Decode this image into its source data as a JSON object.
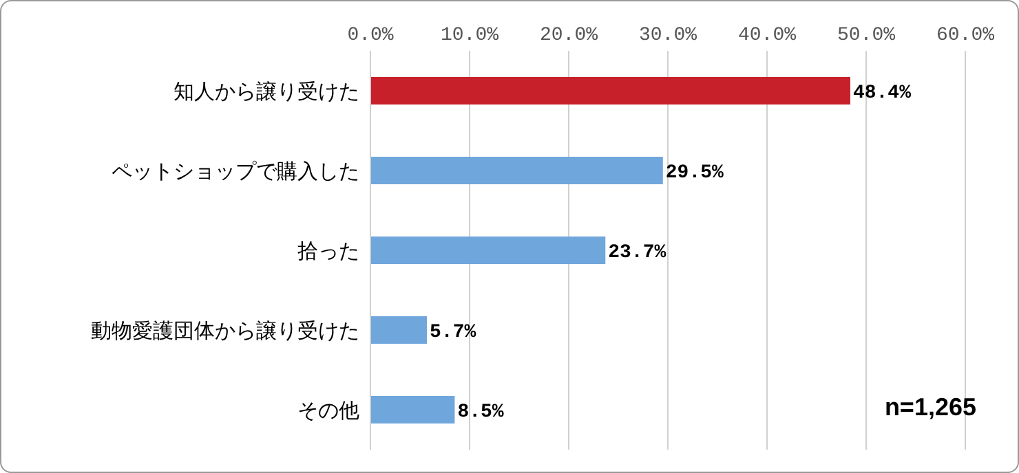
{
  "chart_data": {
    "type": "bar",
    "orientation": "horizontal",
    "categories": [
      "知人から譲り受けた",
      "ペットショップで購入した",
      "拾った",
      "動物愛護団体から譲り受けた",
      "その他"
    ],
    "values": [
      48.4,
      29.5,
      23.7,
      5.7,
      8.5
    ],
    "colors": [
      "#c8202a",
      "#6fa6dc",
      "#6fa6dc",
      "#6fa6dc",
      "#6fa6dc"
    ],
    "value_labels": [
      "48.4%",
      "29.5%",
      "23.7%",
      "5.7%",
      "8.5%"
    ],
    "xlim": [
      0,
      60
    ],
    "xticks": [
      {
        "value": 0,
        "label": "0.0%"
      },
      {
        "value": 10,
        "label": "10.0%"
      },
      {
        "value": 20,
        "label": "20.0%"
      },
      {
        "value": 30,
        "label": "30.0%"
      },
      {
        "value": 40,
        "label": "40.0%"
      },
      {
        "value": 50,
        "label": "50.0%"
      },
      {
        "value": 60,
        "label": "60.0%"
      }
    ],
    "grid": "x",
    "annotations": [
      "n=1,265"
    ]
  }
}
